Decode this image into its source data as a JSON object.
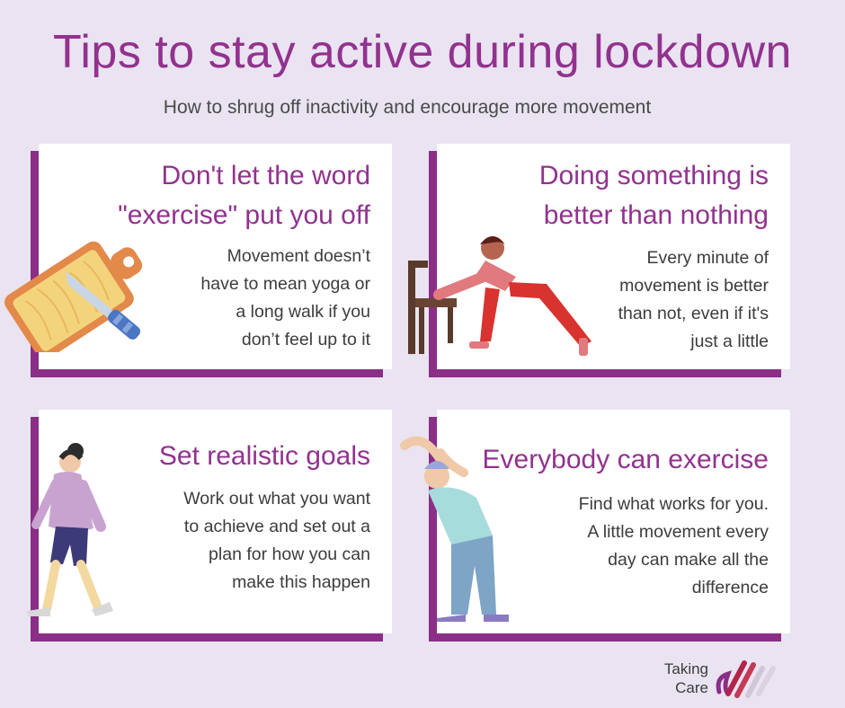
{
  "header": {
    "title": "Tips to stay active during lockdown",
    "subtitle": "How to shrug off inactivity and encourage more movement"
  },
  "cards": [
    {
      "heading": [
        "Don't let the word",
        "\"exercise\" put you off"
      ],
      "body": [
        "Movement doesn’t",
        "have to mean yoga or",
        "a long walk if you",
        "don’t feel up to it"
      ],
      "illustration": "chopping-board-icon"
    },
    {
      "heading": [
        "Doing something is",
        "better than nothing"
      ],
      "body": [
        "Every minute of",
        "movement is better",
        "than not, even if it's",
        "just a little"
      ],
      "illustration": "chair-lunge-figure"
    },
    {
      "heading": [
        "Set realistic goals"
      ],
      "body": [
        "Work out what you want",
        "to achieve and set out a",
        "plan for how you can",
        "make this happen"
      ],
      "illustration": "walking-woman-figure"
    },
    {
      "heading": [
        "Everybody can exercise"
      ],
      "body": [
        "Find what works for you.",
        "A little movement every",
        "day can make all the",
        "difference"
      ],
      "illustration": "stretching-elder-figure"
    }
  ],
  "logo": {
    "line1": "Taking",
    "line2": "Care"
  },
  "colors": {
    "background": "#eae3f1",
    "accent": "#92328f",
    "card_border": "#8a2e86",
    "card": "#ffffff"
  }
}
